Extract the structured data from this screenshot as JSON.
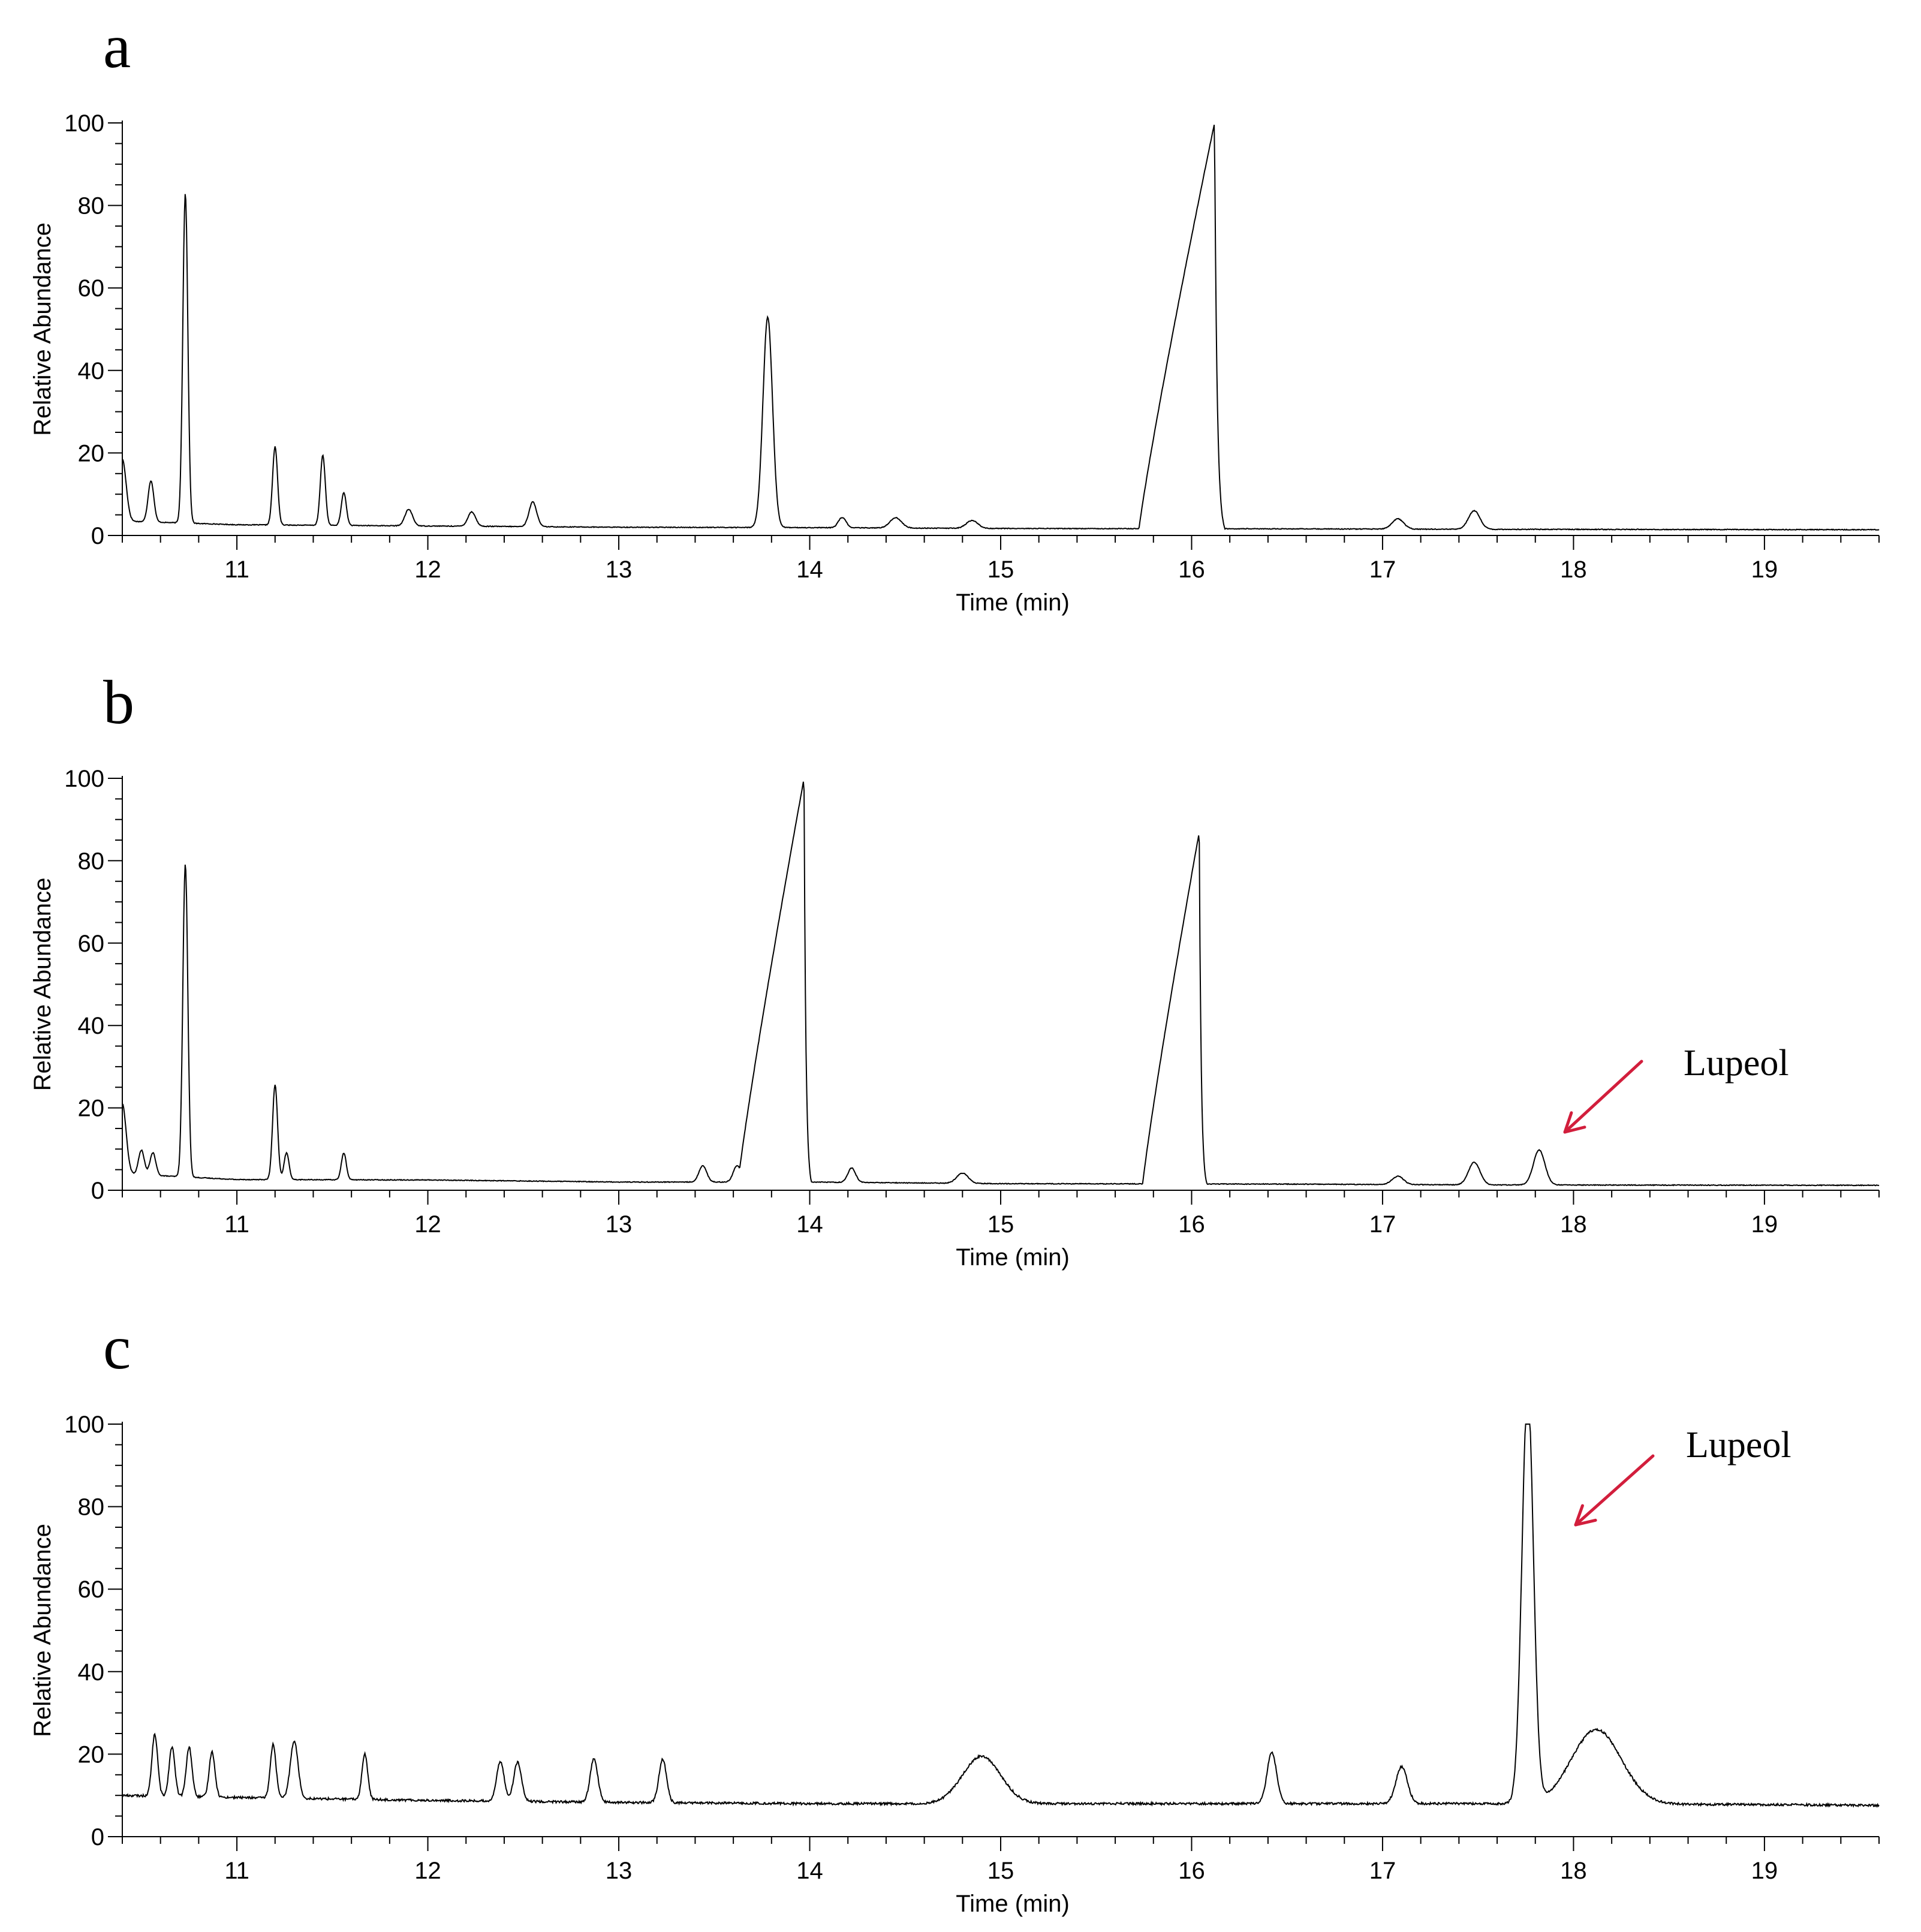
{
  "colors": {
    "trace": "#000000",
    "annotation_arrow": "#d21e3c",
    "background": "#ffffff"
  },
  "chart_data": [
    {
      "panel": "a",
      "type": "line",
      "xlabel": "Time (min)",
      "ylabel": "Relative Abundance",
      "xlim": [
        10.4,
        19.6
      ],
      "ylim": [
        0,
        100
      ],
      "xticks": [
        11,
        12,
        13,
        14,
        15,
        16,
        17,
        18,
        19
      ],
      "yticks": [
        0,
        20,
        40,
        60,
        80,
        100
      ],
      "grid": false,
      "baseline": {
        "points": [
          [
            10.4,
            3.5
          ],
          [
            11.0,
            2.6
          ],
          [
            12.0,
            2.3
          ],
          [
            13.0,
            2.0
          ],
          [
            14.0,
            1.9
          ],
          [
            15.0,
            1.7
          ],
          [
            16.5,
            1.6
          ],
          [
            17.5,
            1.5
          ],
          [
            19.6,
            1.4
          ]
        ]
      },
      "peaks": [
        {
          "rt": 10.4,
          "height": 15,
          "width": 0.02
        },
        {
          "rt": 10.55,
          "height": 10,
          "width": 0.015
        },
        {
          "rt": 10.73,
          "height": 80,
          "width": 0.013
        },
        {
          "rt": 11.2,
          "height": 19,
          "width": 0.013
        },
        {
          "rt": 11.45,
          "height": 17,
          "width": 0.013
        },
        {
          "rt": 11.56,
          "height": 8,
          "width": 0.013
        },
        {
          "rt": 11.9,
          "height": 4,
          "width": 0.02
        },
        {
          "rt": 12.23,
          "height": 3.5,
          "width": 0.02
        },
        {
          "rt": 12.55,
          "height": 6,
          "width": 0.02
        },
        {
          "rt": 13.78,
          "height": 51,
          "width": 0.025
        },
        {
          "rt": 14.17,
          "height": 2.5,
          "width": 0.02
        },
        {
          "rt": 14.45,
          "height": 2.5,
          "width": 0.03
        },
        {
          "rt": 14.85,
          "height": 1.9,
          "width": 0.03
        },
        {
          "rt": 17.08,
          "height": 2.5,
          "width": 0.03
        },
        {
          "rt": 17.48,
          "height": 4.5,
          "width": 0.03
        }
      ],
      "broad_peaks": [
        {
          "start": 15.72,
          "apex": 16.12,
          "end": 16.2,
          "height": 100
        }
      ]
    },
    {
      "panel": "b",
      "type": "line",
      "xlabel": "Time (min)",
      "ylabel": "Relative Abundance",
      "xlim": [
        10.4,
        19.6
      ],
      "ylim": [
        0,
        100
      ],
      "xticks": [
        11,
        12,
        13,
        14,
        15,
        16,
        17,
        18,
        19
      ],
      "yticks": [
        0,
        20,
        40,
        60,
        80,
        100
      ],
      "grid": false,
      "baseline": {
        "points": [
          [
            10.4,
            4.0
          ],
          [
            11.0,
            2.6
          ],
          [
            12.0,
            2.5
          ],
          [
            13.0,
            2.0
          ],
          [
            14.0,
            2.0
          ],
          [
            15.0,
            1.6
          ],
          [
            16.5,
            1.5
          ],
          [
            17.5,
            1.3
          ],
          [
            19.6,
            1.2
          ]
        ]
      },
      "peaks": [
        {
          "rt": 10.4,
          "height": 17,
          "width": 0.02
        },
        {
          "rt": 10.5,
          "height": 6,
          "width": 0.015
        },
        {
          "rt": 10.56,
          "height": 5.5,
          "width": 0.015
        },
        {
          "rt": 10.73,
          "height": 76,
          "width": 0.013
        },
        {
          "rt": 11.2,
          "height": 23,
          "width": 0.013
        },
        {
          "rt": 11.26,
          "height": 6.5,
          "width": 0.013
        },
        {
          "rt": 11.56,
          "height": 6.5,
          "width": 0.013
        },
        {
          "rt": 13.44,
          "height": 4,
          "width": 0.02
        },
        {
          "rt": 13.62,
          "height": 4,
          "width": 0.02
        },
        {
          "rt": 14.22,
          "height": 3.5,
          "width": 0.02
        },
        {
          "rt": 14.8,
          "height": 2.5,
          "width": 0.03
        },
        {
          "rt": 17.08,
          "height": 2,
          "width": 0.03
        },
        {
          "rt": 17.48,
          "height": 5.5,
          "width": 0.03
        },
        {
          "rt": 17.82,
          "height": 8.5,
          "width": 0.03
        }
      ],
      "broad_peaks": [
        {
          "start": 13.62,
          "apex": 13.97,
          "end": 14.03,
          "height": 100
        },
        {
          "start": 15.74,
          "apex": 16.04,
          "end": 16.1,
          "height": 87
        }
      ],
      "annotation": {
        "text": "Lupeol",
        "target_rt": 17.82
      }
    },
    {
      "panel": "c",
      "type": "line",
      "xlabel": "Time (min)",
      "ylabel": "Relative Abundance",
      "xlim": [
        10.4,
        19.6
      ],
      "ylim": [
        0,
        100
      ],
      "xticks": [
        11,
        12,
        13,
        14,
        15,
        16,
        17,
        18,
        19
      ],
      "yticks": [
        0,
        20,
        40,
        60,
        80,
        100
      ],
      "grid": false,
      "baseline": {
        "points": [
          [
            10.4,
            10.0
          ],
          [
            11.0,
            9.5
          ],
          [
            12.0,
            8.8
          ],
          [
            13.0,
            8.3
          ],
          [
            14.0,
            8.0
          ],
          [
            15.0,
            8.0
          ],
          [
            16.0,
            8.0
          ],
          [
            17.0,
            8.0
          ],
          [
            18.0,
            8.0
          ],
          [
            19.6,
            7.6
          ]
        ]
      },
      "peaks": [
        {
          "rt": 10.57,
          "height": 15,
          "width": 0.015
        },
        {
          "rt": 10.66,
          "height": 12,
          "width": 0.015
        },
        {
          "rt": 10.75,
          "height": 12,
          "width": 0.015
        },
        {
          "rt": 10.87,
          "height": 11,
          "width": 0.015
        },
        {
          "rt": 11.19,
          "height": 13,
          "width": 0.015
        },
        {
          "rt": 11.3,
          "height": 14,
          "width": 0.02
        },
        {
          "rt": 11.67,
          "height": 11,
          "width": 0.015
        },
        {
          "rt": 12.38,
          "height": 9.5,
          "width": 0.02
        },
        {
          "rt": 12.47,
          "height": 9.5,
          "width": 0.02
        },
        {
          "rt": 12.87,
          "height": 10.5,
          "width": 0.02
        },
        {
          "rt": 13.23,
          "height": 10.5,
          "width": 0.02
        },
        {
          "rt": 14.9,
          "height": 11.5,
          "width": 0.1
        },
        {
          "rt": 16.42,
          "height": 12.5,
          "width": 0.025
        },
        {
          "rt": 17.1,
          "height": 9,
          "width": 0.03
        },
        {
          "rt": 17.76,
          "height": 100,
          "width": 0.03
        },
        {
          "rt": 18.12,
          "height": 18,
          "width": 0.13
        }
      ],
      "broad_peaks": [],
      "annotation": {
        "text": "Lupeol",
        "target_rt": 17.76
      }
    }
  ]
}
